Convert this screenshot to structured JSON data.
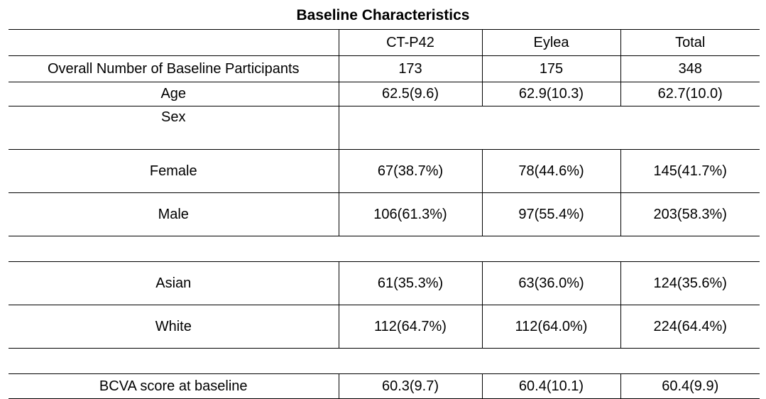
{
  "title": "Baseline Characteristics",
  "columns": [
    "CT-P42",
    "Eylea",
    "Total"
  ],
  "rows": {
    "participants": {
      "label": "Overall Number of Baseline Participants",
      "values": [
        "173",
        "175",
        "348"
      ]
    },
    "age": {
      "label": "Age",
      "values": [
        "62.5(9.6)",
        "62.9(10.3)",
        "62.7(10.0)"
      ]
    },
    "sex": {
      "label": "Sex"
    },
    "female": {
      "label": "Female",
      "values": [
        "67(38.7%)",
        "78(44.6%)",
        "145(41.7%)"
      ]
    },
    "male": {
      "label": "Male",
      "values": [
        "106(61.3%)",
        "97(55.4%)",
        "203(58.3%)"
      ]
    },
    "asian": {
      "label": "Asian",
      "values": [
        "61(35.3%)",
        "63(36.0%)",
        "124(35.6%)"
      ]
    },
    "white": {
      "label": "White",
      "values": [
        "112(64.7%)",
        "112(64.0%)",
        "224(64.4%)"
      ]
    },
    "bcva": {
      "label": "BCVA score at baseline",
      "values": [
        "60.3(9.7)",
        "60.4(10.1)",
        "60.4(9.9)"
      ]
    }
  }
}
